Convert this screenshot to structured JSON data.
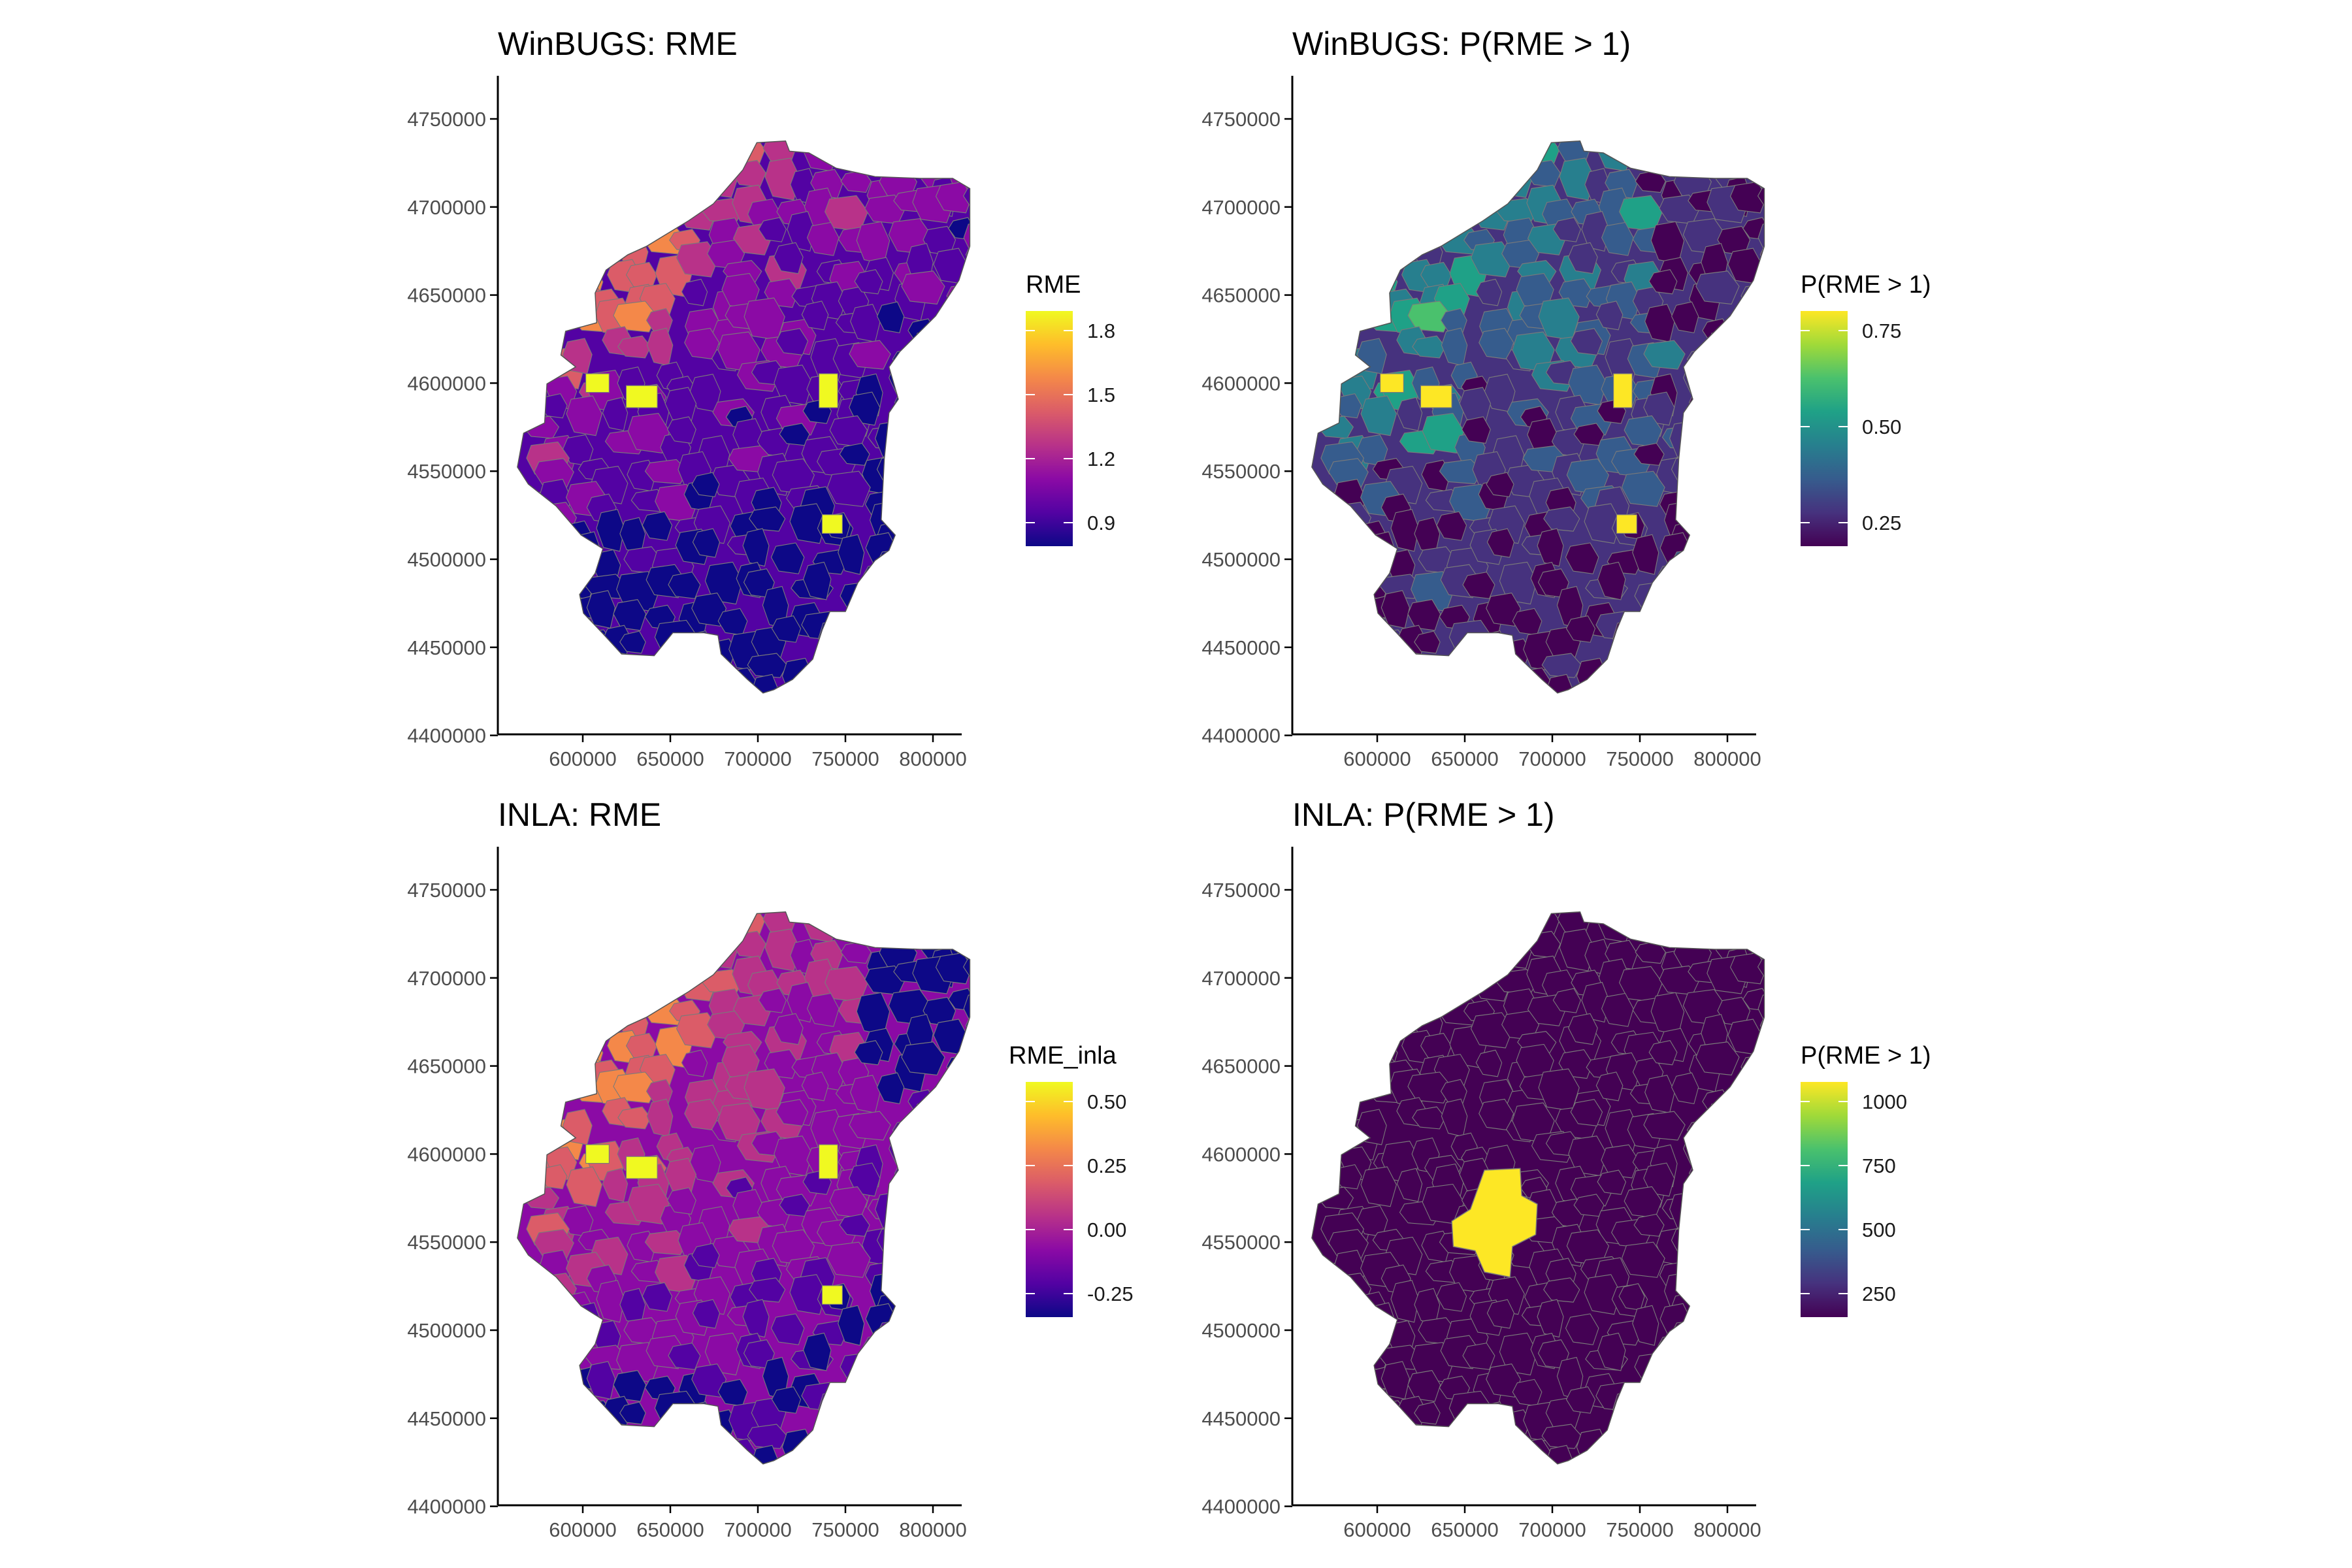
{
  "panels": [
    {
      "id": "winbugs-rme",
      "title": "WinBUGS: RME",
      "palette": "plasma",
      "legend": {
        "title": "RME",
        "ticks": [
          "1.8",
          "1.5",
          "1.2",
          "0.9"
        ]
      },
      "yticks": [
        "4750000",
        "4700000",
        "4650000",
        "4600000",
        "4550000",
        "4500000",
        "4450000",
        "4400000"
      ],
      "xticks": [
        "600000",
        "650000",
        "700000",
        "750000",
        "800000"
      ]
    },
    {
      "id": "winbugs-prob",
      "title": "WinBUGS: P(RME > 1)",
      "palette": "viridis",
      "legend": {
        "title": "P(RME > 1)",
        "ticks": [
          "0.75",
          "0.50",
          "0.25"
        ]
      },
      "yticks": [
        "4750000",
        "4700000",
        "4650000",
        "4600000",
        "4550000",
        "4500000",
        "4450000",
        "4400000"
      ],
      "xticks": [
        "600000",
        "650000",
        "700000",
        "750000",
        "800000"
      ]
    },
    {
      "id": "inla-rme",
      "title": "INLA: RME",
      "palette": "plasma",
      "legend": {
        "title": "RME_inla",
        "ticks": [
          "0.50",
          "0.25",
          "0.00",
          "-0.25"
        ]
      },
      "yticks": [
        "4750000",
        "4700000",
        "4650000",
        "4600000",
        "4550000",
        "4500000",
        "4450000",
        "4400000"
      ],
      "xticks": [
        "600000",
        "650000",
        "700000",
        "750000",
        "800000"
      ]
    },
    {
      "id": "inla-prob",
      "title": "INLA: P(RME > 1)",
      "palette": "viridis",
      "legend": {
        "title": "P(RME > 1)",
        "ticks": [
          "1000",
          "750",
          "500",
          "250"
        ]
      },
      "yticks": [
        "4750000",
        "4700000",
        "4650000",
        "4600000",
        "4550000",
        "4500000",
        "4450000",
        "4400000"
      ],
      "xticks": [
        "600000",
        "650000",
        "700000",
        "750000",
        "800000"
      ]
    }
  ],
  "colors": {
    "plasma": [
      "#0d0887",
      "#5302a3",
      "#8b0aa5",
      "#b83289",
      "#db5c68",
      "#f48849",
      "#febd2a",
      "#f0f921"
    ],
    "viridis": [
      "#440154",
      "#46327e",
      "#365c8d",
      "#277f8e",
      "#1fa187",
      "#4ac16d",
      "#a0da39",
      "#fde725"
    ],
    "border": "#7a7a7a",
    "axis": "#000000"
  }
}
